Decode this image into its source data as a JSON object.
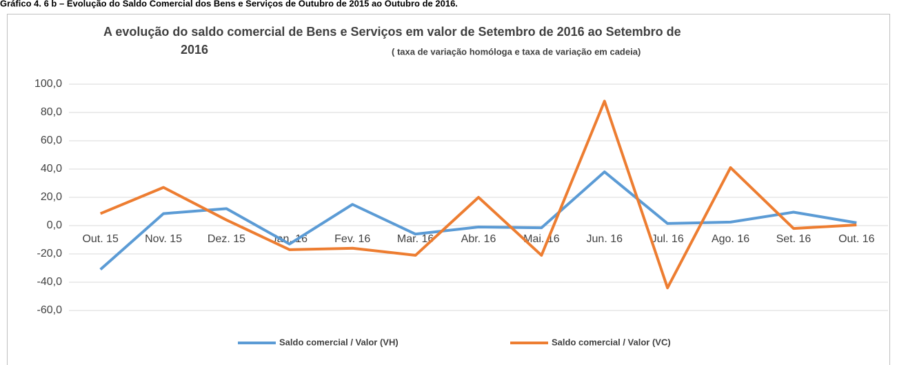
{
  "caption": "Gráfico 4. 6 b – Evolução do Saldo Comercial dos Bens e Serviços de Outubro de 2015 ao Outubro de 2016.",
  "chart_data": {
    "type": "line",
    "title": [
      "A evolução do saldo comercial de Bens e Serviços em valor de Setembro de 2016 ao Setembro de",
      "2016"
    ],
    "subtitle": "( taxa de variação homóloga e taxa de variação em cadeia)",
    "categories": [
      "Out. 15",
      "Nov. 15",
      "Dez. 15",
      "Jan. 16",
      "Fev. 16",
      "Mar. 16",
      "Abr. 16",
      "Mai. 16",
      "Jun. 16",
      "Jul. 16",
      "Ago. 16",
      "Set. 16",
      "Out. 16"
    ],
    "series": [
      {
        "name": "Saldo comercial / Valor (VH)",
        "color": "#5b9bd5",
        "values": [
          -31,
          8.5,
          12,
          -13,
          15,
          -6,
          -1,
          -1.5,
          38,
          1.5,
          2.5,
          9.5,
          2
        ]
      },
      {
        "name": "Saldo comercial / Valor (VC)",
        "color": "#ed7d31",
        "values": [
          8.5,
          27,
          4,
          -17,
          -16,
          -21,
          20,
          -21,
          88,
          -44,
          41,
          -2,
          0.5
        ]
      }
    ],
    "ylim": [
      -60,
      100
    ],
    "yticks": [
      {
        "value": -60,
        "label": "-60,0"
      },
      {
        "value": -40,
        "label": "-40,0"
      },
      {
        "value": -20,
        "label": "-20,0"
      },
      {
        "value": 0,
        "label": "0,0"
      },
      {
        "value": 20,
        "label": "20,0"
      },
      {
        "value": 40,
        "label": "40,0"
      },
      {
        "value": 60,
        "label": "60,0"
      },
      {
        "value": 80,
        "label": "80,0"
      },
      {
        "value": 100,
        "label": "100,0"
      }
    ],
    "grid": true,
    "legend": "bottom"
  }
}
